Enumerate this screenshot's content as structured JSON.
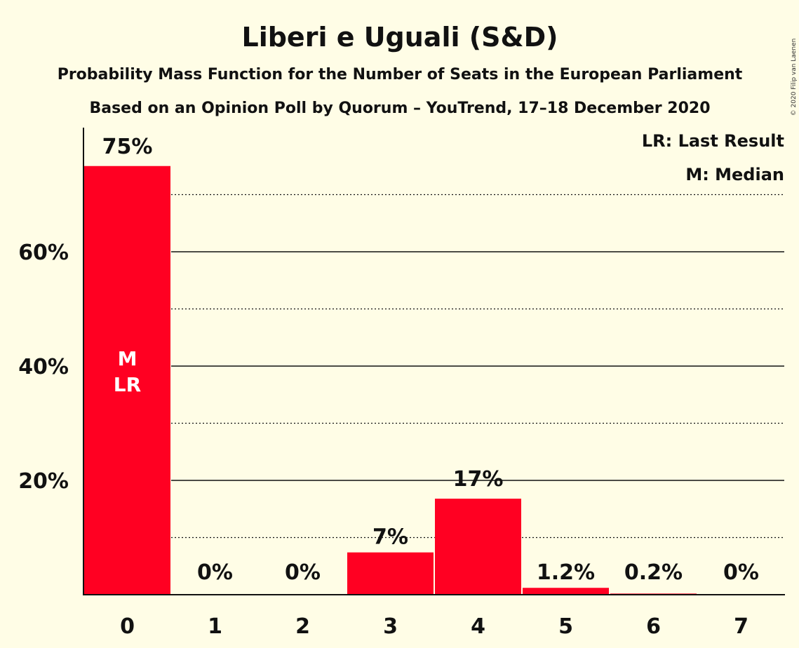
{
  "chart_data": {
    "type": "bar",
    "title": "Liberi e Uguali (S&D)",
    "subtitle": "Probability Mass Function for the Number of Seats in the European Parliament",
    "subtitle2": "Based on an Opinion Poll by Quorum – YouTrend, 17–18 December 2020",
    "categories": [
      "0",
      "1",
      "2",
      "3",
      "4",
      "5",
      "6",
      "7"
    ],
    "values": [
      75,
      0,
      0,
      7.4,
      16.8,
      1.2,
      0.2,
      0
    ],
    "value_labels": [
      "75%",
      "0%",
      "0%",
      "7%",
      "17%",
      "1.2%",
      "0.2%",
      "0%"
    ],
    "ylim": [
      0,
      80
    ],
    "y_ticks": [
      20,
      40,
      60
    ],
    "y_tick_labels": [
      "20%",
      "40%",
      "60%"
    ],
    "dotted_lines": [
      10,
      30,
      50,
      70
    ],
    "bar_color": "#ff0022",
    "legend": [
      "LR: Last Result",
      "M: Median"
    ],
    "bar_annotation": {
      "index": 0,
      "lines": [
        "M",
        "LR"
      ]
    },
    "copyright": "© 2020 Filip van Laenen"
  }
}
